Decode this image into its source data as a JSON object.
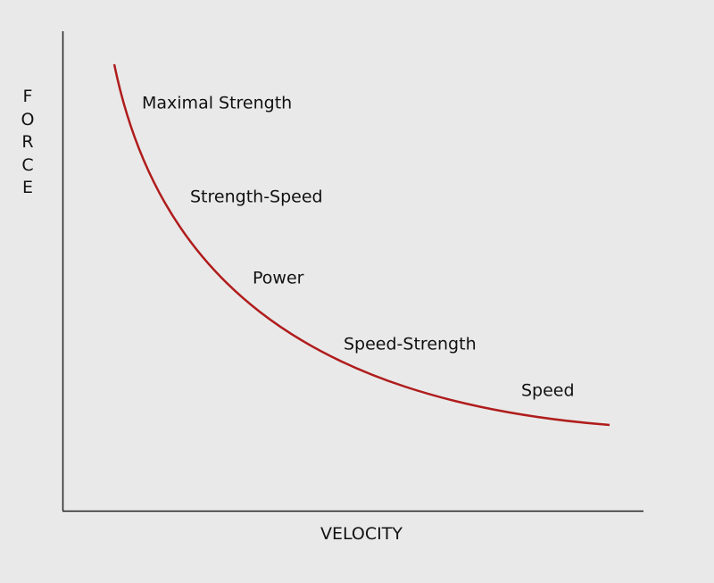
{
  "axes": {
    "y_label": "FORCE",
    "x_label": "VELOCITY"
  },
  "regions": [
    "Maximal Strength",
    "Strength-Speed",
    "Power",
    "Speed-Strength",
    "Speed"
  ]
}
